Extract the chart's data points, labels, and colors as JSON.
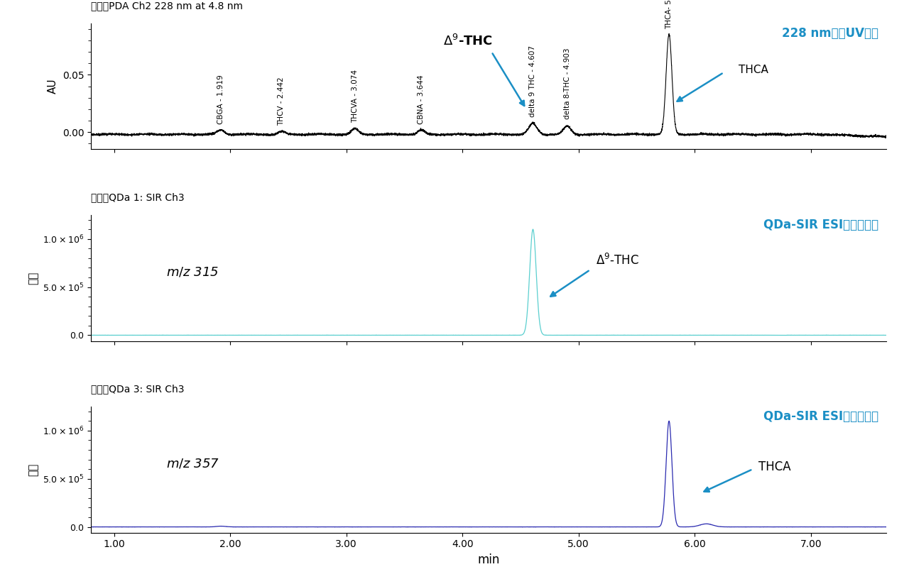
{
  "fig_width": 12.8,
  "fig_height": 8.16,
  "dpi": 100,
  "bg_color": "#ffffff",
  "xmin": 0.8,
  "xmax": 7.65,
  "panel1": {
    "title": "通道：PDA Ch2 228 nm at 4.8 nm",
    "ylabel": "AU",
    "yticks": [
      0.0,
      0.05
    ],
    "ylim": [
      -0.015,
      0.095
    ],
    "line_color": "#000000"
  },
  "panel2": {
    "title": "通道：QDa 1: SIR Ch3",
    "ylabel": "强度",
    "yticks": [
      0,
      500000,
      1000000
    ],
    "ylim": [
      -60000,
      1250000
    ],
    "line_color": "#5BCFCF"
  },
  "panel3": {
    "title": "通道：QDa 3: SIR Ch3",
    "ylabel": "强度",
    "yticks": [
      0,
      500000,
      1000000
    ],
    "ylim": [
      -60000,
      1250000
    ],
    "line_color": "#2B2BB0"
  },
  "xlabel": "min",
  "xticks": [
    1.0,
    2.0,
    3.0,
    4.0,
    5.0,
    6.0,
    7.0
  ],
  "xticklabels": [
    "1.00",
    "2.00",
    "3.00",
    "4.00",
    "5.00",
    "6.00",
    "7.00"
  ],
  "arrow_color": "#1B8FC5",
  "uv_label_color": "#1B8FC5",
  "peak_label_fontsize": 7.5,
  "title_fontsize": 10,
  "ylabel_fontsize": 11,
  "xlabel_fontsize": 12
}
